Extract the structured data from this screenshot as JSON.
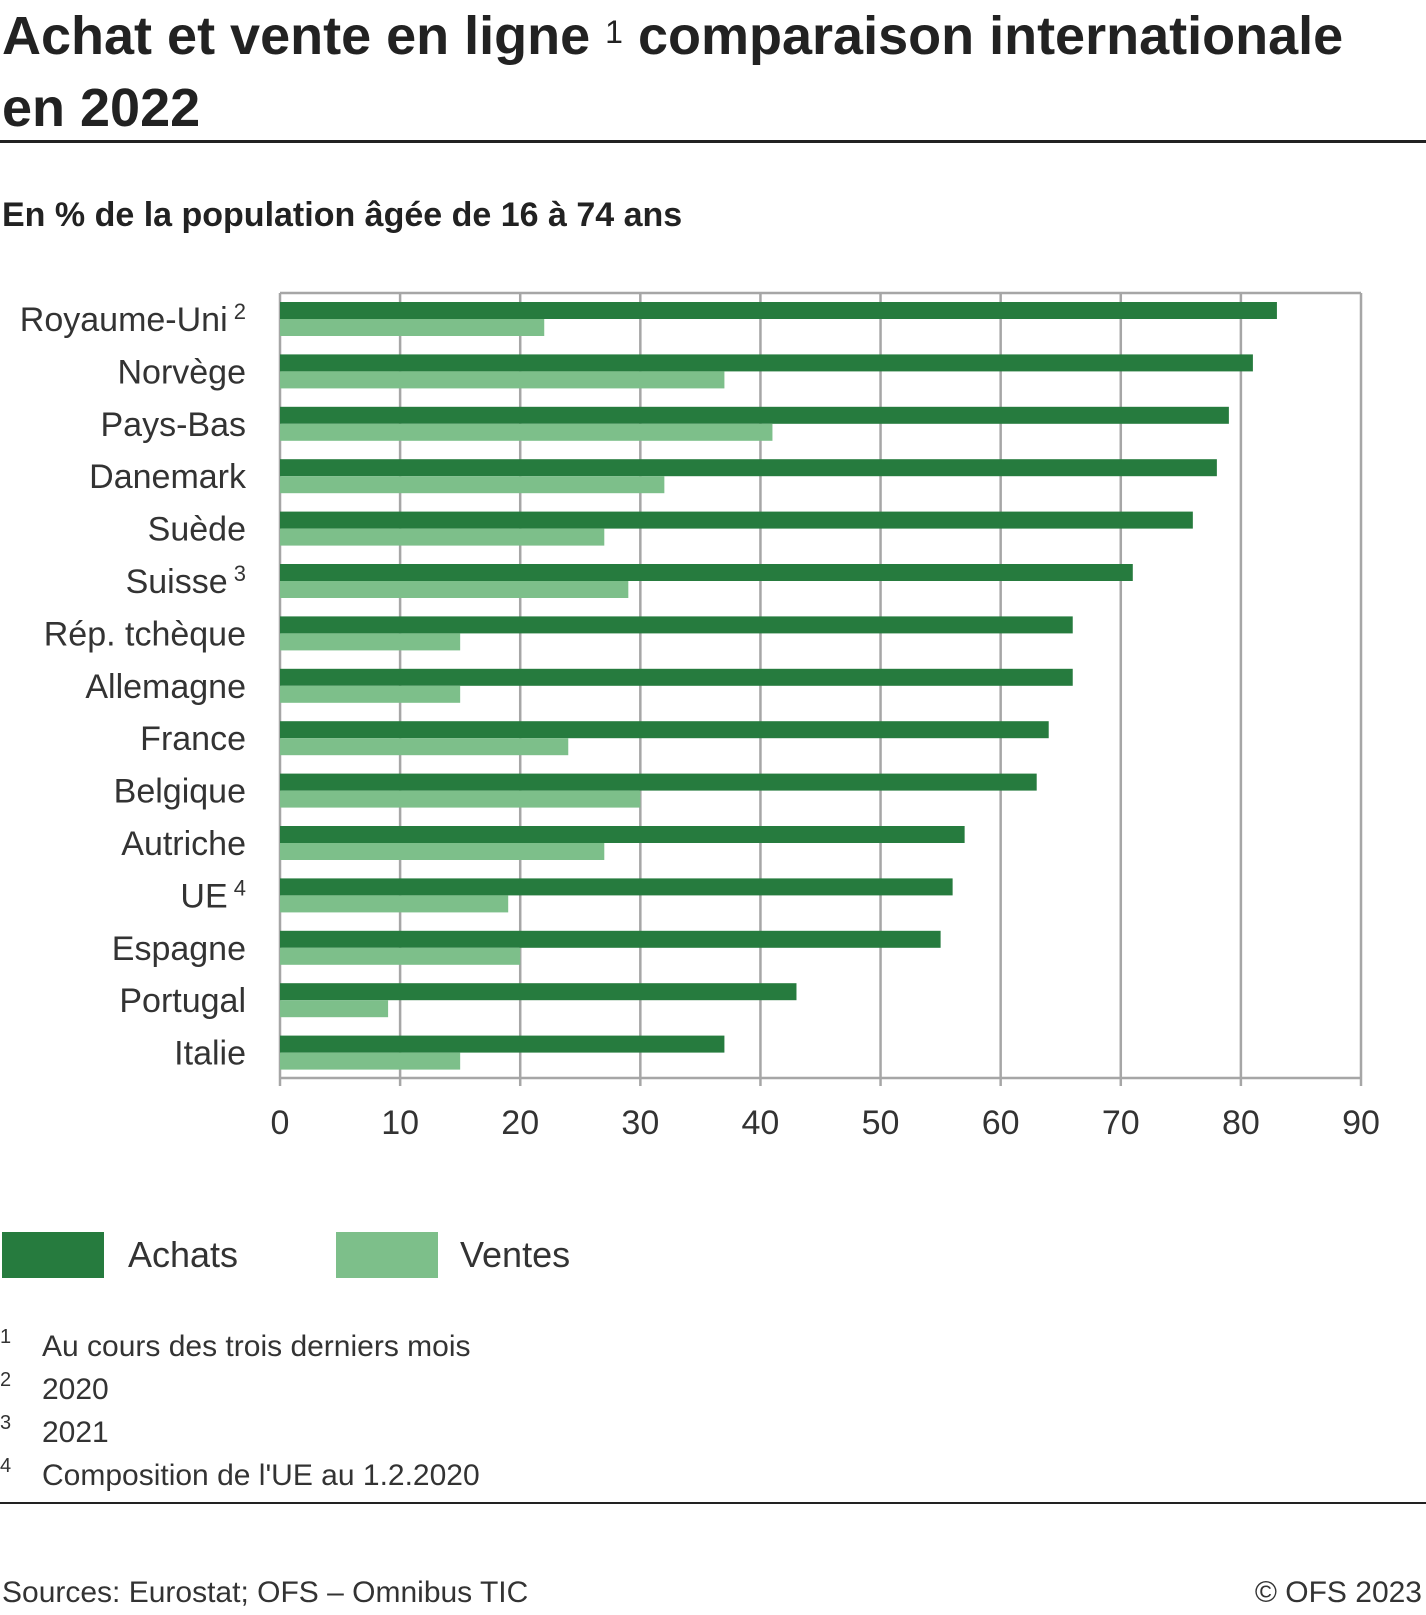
{
  "header": {
    "title_part1": "Achat et vente en ligne",
    "title_note": "1",
    "title_part2": "comparaison internationale en 2022",
    "subtitle": "En % de la population âgée de 16 à 74 ans"
  },
  "chart_data": {
    "type": "bar",
    "orientation": "horizontal",
    "categories": [
      "Royaume-Uni",
      "Norvège",
      "Pays-Bas",
      "Danemark",
      "Suède",
      "Suisse",
      "Rép. tchèque",
      "Allemagne",
      "France",
      "Belgique",
      "Autriche",
      "UE",
      "Espagne",
      "Portugal",
      "Italie"
    ],
    "category_notes": [
      "2",
      "",
      "",
      "",
      "",
      "3",
      "",
      "",
      "",
      "",
      "",
      "4",
      "",
      "",
      ""
    ],
    "series": [
      {
        "name": "Achats",
        "color": "#267b3e",
        "values": [
          83,
          81,
          79,
          78,
          76,
          71,
          66,
          66,
          64,
          63,
          57,
          56,
          55,
          43,
          37
        ]
      },
      {
        "name": "Ventes",
        "color": "#7dbf8a",
        "values": [
          22,
          37,
          41,
          32,
          27,
          29,
          15,
          15,
          24,
          30,
          27,
          19,
          20,
          9,
          15
        ]
      }
    ],
    "xlim": [
      0,
      90
    ],
    "xticks": [
      "0",
      "10",
      "20",
      "30",
      "40",
      "50",
      "60",
      "70",
      "80",
      "90"
    ],
    "grid": true,
    "legend_position": "bottom-left"
  },
  "footnotes": [
    {
      "num": "1",
      "text": "Au cours des trois derniers mois"
    },
    {
      "num": "2",
      "text": "2020"
    },
    {
      "num": "3",
      "text": "2021"
    },
    {
      "num": "4",
      "text": "Composition de l'UE au 1.2.2020"
    }
  ],
  "footer": {
    "source": "Sources: Eurostat; OFS – Omnibus TIC",
    "copyright": "© OFS 2023"
  },
  "colors": {
    "grid": "#a6a6a6",
    "text": "#333333"
  }
}
